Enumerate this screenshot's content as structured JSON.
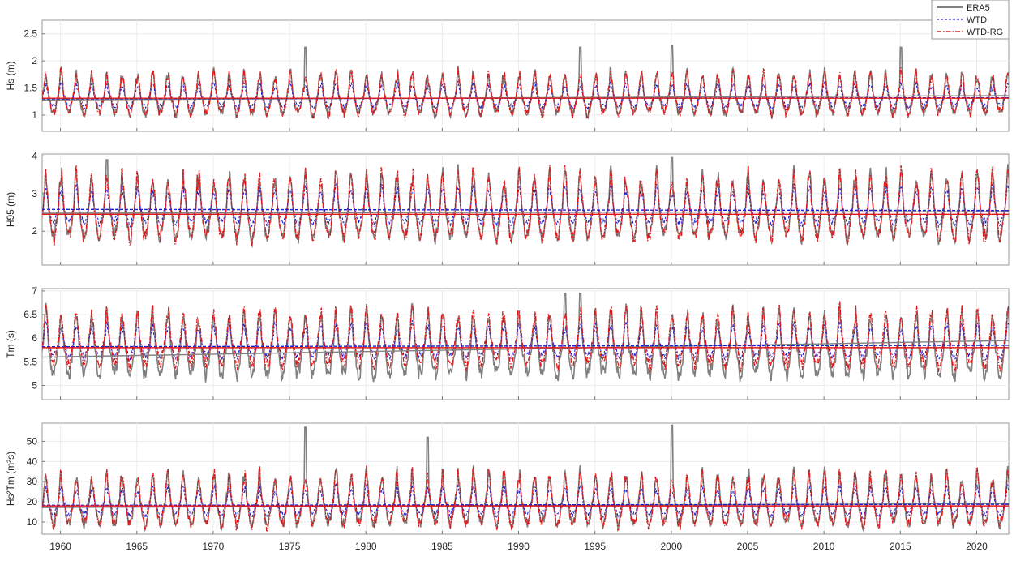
{
  "chart_data": {
    "type": "line",
    "x_range": [
      1958.8,
      2022.1
    ],
    "x_ticks": [
      "1960",
      "1965",
      "1970",
      "1975",
      "1980",
      "1985",
      "1990",
      "1995",
      "2000",
      "2005",
      "2010",
      "2015",
      "2020"
    ],
    "legend": {
      "placement": "top-right",
      "entries": [
        {
          "label": "ERA5",
          "color": "#808080",
          "style": "solid"
        },
        {
          "label": "WTD",
          "color": "#1f1fd0",
          "style": "dashed"
        },
        {
          "label": "WTD-RG",
          "color": "#e02020",
          "style": "dash-dot"
        }
      ]
    },
    "panels": [
      {
        "id": "hs",
        "ylabel": "Hs (m)",
        "ylim": [
          0.7,
          2.75
        ],
        "yticks": [
          "1",
          "1.5",
          "2",
          "2.5"
        ],
        "yticks_values": [
          1,
          1.5,
          2,
          2.5
        ],
        "series": [
          {
            "name": "ERA5",
            "mean": 1.3,
            "amplitude": 0.45,
            "peak_years": {
              "1976": 2.25,
              "1994": 2.25,
              "2000": 2.28,
              "2015": 2.25
            }
          },
          {
            "name": "WTD",
            "mean": 1.3,
            "amplitude": 0.25
          },
          {
            "name": "WTD-RG",
            "mean": 1.3,
            "amplitude": 0.45
          }
        ],
        "trend_lines": [
          {
            "name": "ERA5",
            "start": 1.28,
            "end": 1.36
          },
          {
            "name": "WTD",
            "start": 1.3,
            "end": 1.32
          },
          {
            "name": "WTD-RG",
            "start": 1.31,
            "end": 1.31
          }
        ]
      },
      {
        "id": "h95",
        "ylabel": "H95 (m)",
        "ylim": [
          1.1,
          4.05
        ],
        "yticks": [
          "2",
          "3",
          "4"
        ],
        "yticks_values": [
          2,
          3,
          4
        ],
        "series": [
          {
            "name": "ERA5",
            "mean": 2.45,
            "amplitude": 1.0,
            "peak_years": {
              "1963": 3.9,
              "2000": 3.95
            }
          },
          {
            "name": "WTD",
            "mean": 2.55,
            "amplitude": 0.55
          },
          {
            "name": "WTD-RG",
            "mean": 2.45,
            "amplitude": 1.0
          }
        ],
        "trend_lines": [
          {
            "name": "ERA5",
            "start": 2.48,
            "end": 2.52
          },
          {
            "name": "WTD",
            "start": 2.58,
            "end": 2.55
          },
          {
            "name": "WTD-RG",
            "start": 2.45,
            "end": 2.45
          }
        ]
      },
      {
        "id": "tm",
        "ylabel": "Tm (s)",
        "ylim": [
          4.7,
          7.05
        ],
        "yticks": [
          "5",
          "5.5",
          "6",
          "6.5",
          "7"
        ],
        "yticks_values": [
          5,
          5.5,
          6,
          6.5,
          7
        ],
        "series": [
          {
            "name": "ERA5",
            "mean": 5.7,
            "amplitude": 0.8,
            "peak_years": {
              "1993": 6.95,
              "1994": 6.95
            }
          },
          {
            "name": "WTD",
            "mean": 5.85,
            "amplitude": 0.4
          },
          {
            "name": "WTD-RG",
            "mean": 5.85,
            "amplitude": 0.7
          }
        ],
        "trend_lines": [
          {
            "name": "ERA5",
            "start": 5.6,
            "end": 5.95
          },
          {
            "name": "WTD",
            "start": 5.82,
            "end": 5.85
          },
          {
            "name": "WTD-RG",
            "start": 5.8,
            "end": 5.8
          }
        ]
      },
      {
        "id": "hs2tm",
        "ylabel": "Hs²Tm (m²s)",
        "ylim": [
          4,
          59
        ],
        "yticks": [
          "10",
          "20",
          "30",
          "40",
          "50"
        ],
        "yticks_values": [
          10,
          20,
          30,
          40,
          50
        ],
        "series": [
          {
            "name": "ERA5",
            "mean": 18,
            "amplitude": 15,
            "peak_years": {
              "1976": 57,
              "2000": 58,
              "1984": 52
            }
          },
          {
            "name": "WTD",
            "mean": 18.5,
            "amplitude": 8
          },
          {
            "name": "WTD-RG",
            "mean": 18,
            "amplitude": 15
          }
        ],
        "trend_lines": [
          {
            "name": "ERA5",
            "start": 17.2,
            "end": 19.2
          },
          {
            "name": "WTD",
            "start": 18.3,
            "end": 18.8
          },
          {
            "name": "WTD-RG",
            "start": 18.0,
            "end": 18.0
          }
        ]
      }
    ]
  }
}
